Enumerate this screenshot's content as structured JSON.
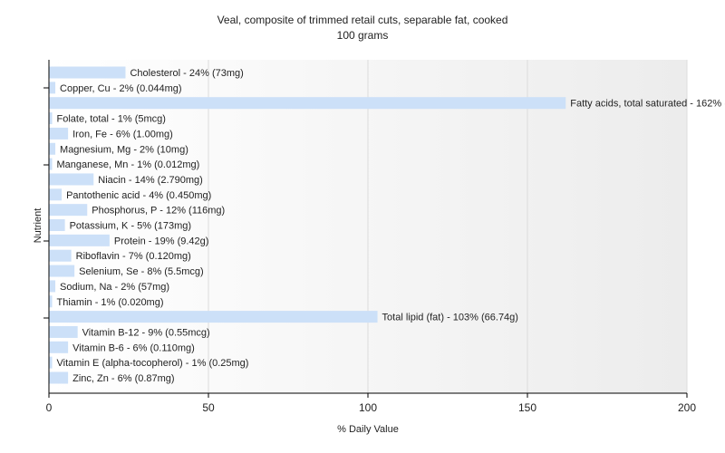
{
  "chart_data": {
    "type": "bar",
    "orientation": "horizontal",
    "title": "Veal, composite of trimmed retail cuts, separable fat, cooked",
    "subtitle": "100 grams",
    "xlabel": "% Daily Value",
    "ylabel": "Nutrient",
    "xlim": [
      0,
      200
    ],
    "xticks": [
      0,
      50,
      100,
      150,
      200
    ],
    "bar_color": "#cce0f8",
    "grid": "vertical",
    "categories": [
      "Cholesterol",
      "Copper, Cu",
      "Fatty acids, total saturated",
      "Folate, total",
      "Iron, Fe",
      "Magnesium, Mg",
      "Manganese, Mn",
      "Niacin",
      "Pantothenic acid",
      "Phosphorus, P",
      "Potassium, K",
      "Protein",
      "Riboflavin",
      "Selenium, Se",
      "Sodium, Na",
      "Thiamin",
      "Total lipid (fat)",
      "Vitamin B-12",
      "Vitamin B-6",
      "Vitamin E (alpha-tocopherol)",
      "Zinc, Zn"
    ],
    "values": [
      24,
      2,
      162,
      1,
      6,
      2,
      1,
      14,
      4,
      12,
      5,
      19,
      7,
      8,
      2,
      1,
      103,
      9,
      6,
      1,
      6
    ],
    "labels": [
      "Cholesterol - 24% (73mg)",
      "Copper, Cu - 2% (0.044mg)",
      "Fatty acids, total saturated - 162% (32.390g)",
      "Folate, total - 1% (5mcg)",
      "Iron, Fe - 6% (1.00mg)",
      "Magnesium, Mg - 2% (10mg)",
      "Manganese, Mn - 1% (0.012mg)",
      "Niacin - 14% (2.790mg)",
      "Pantothenic acid - 4% (0.450mg)",
      "Phosphorus, P - 12% (116mg)",
      "Potassium, K - 5% (173mg)",
      "Protein - 19% (9.42g)",
      "Riboflavin - 7% (0.120mg)",
      "Selenium, Se - 8% (5.5mcg)",
      "Sodium, Na - 2% (57mg)",
      "Thiamin - 1% (0.020mg)",
      "Total lipid (fat) - 103% (66.74g)",
      "Vitamin B-12 - 9% (0.55mcg)",
      "Vitamin B-6 - 6% (0.110mg)",
      "Vitamin E (alpha-tocopherol) - 1% (0.25mg)",
      "Zinc, Zn - 6% (0.87mg)"
    ]
  }
}
